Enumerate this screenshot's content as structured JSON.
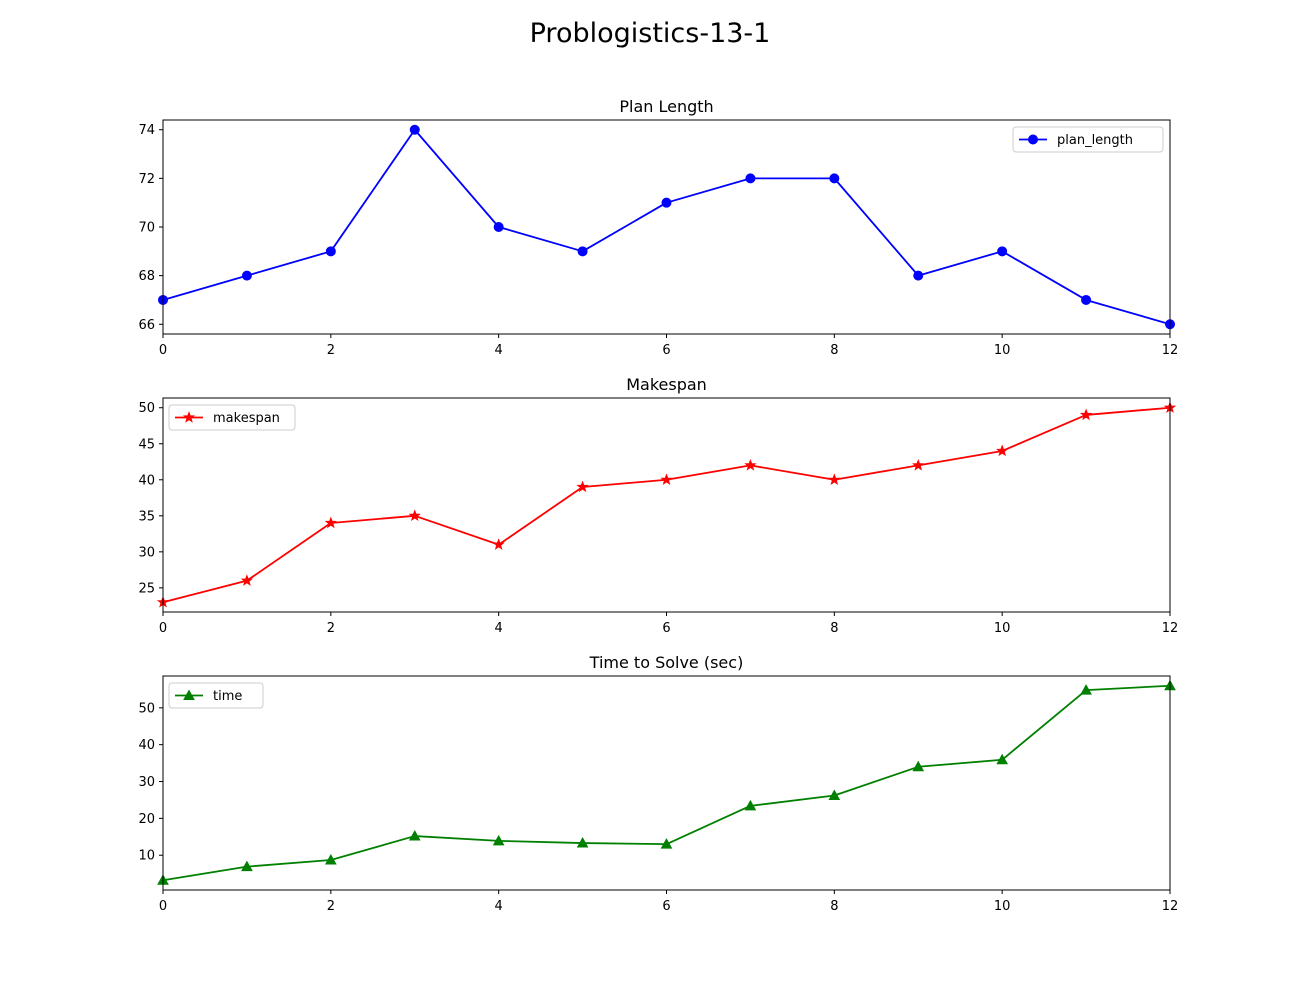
{
  "figure": {
    "title": "Problogistics-13-1"
  },
  "chart_data": [
    {
      "type": "line",
      "title": "Plan Length",
      "x": [
        0,
        1,
        2,
        3,
        4,
        5,
        6,
        7,
        8,
        9,
        10,
        11,
        12
      ],
      "series": [
        {
          "name": "plan_length",
          "values": [
            67,
            68,
            69,
            74,
            70,
            69,
            71,
            72,
            72,
            68,
            69,
            67,
            66
          ],
          "color": "#0000ff",
          "marker": "circle"
        }
      ],
      "xlim": [
        0,
        12
      ],
      "ylim": [
        65.6,
        74.4
      ],
      "xticks": [
        0,
        2,
        4,
        6,
        8,
        10,
        12
      ],
      "yticks": [
        66,
        68,
        70,
        72,
        74
      ],
      "legend": "upper-right",
      "grid": false
    },
    {
      "type": "line",
      "title": "Makespan",
      "x": [
        0,
        1,
        2,
        3,
        4,
        5,
        6,
        7,
        8,
        9,
        10,
        11,
        12
      ],
      "series": [
        {
          "name": "makespan",
          "values": [
            23,
            26,
            34,
            35,
            31,
            39,
            40,
            42,
            40,
            42,
            44,
            49,
            50
          ],
          "color": "#ff0000",
          "marker": "star"
        }
      ],
      "xlim": [
        0,
        12
      ],
      "ylim": [
        21.65,
        51.35
      ],
      "xticks": [
        0,
        2,
        4,
        6,
        8,
        10,
        12
      ],
      "yticks": [
        25,
        30,
        35,
        40,
        45,
        50
      ],
      "legend": "upper-left",
      "grid": false
    },
    {
      "type": "line",
      "title": "Time to Solve (sec)",
      "x": [
        0,
        1,
        2,
        3,
        4,
        5,
        6,
        7,
        8,
        9,
        10,
        11,
        12
      ],
      "series": [
        {
          "name": "time",
          "values": [
            3.2,
            6.9,
            8.7,
            15.2,
            13.9,
            13.3,
            13.0,
            23.4,
            26.2,
            34.0,
            35.9,
            54.8,
            56.0
          ],
          "color": "#008000",
          "marker": "triangle"
        }
      ],
      "xlim": [
        0,
        12
      ],
      "ylim": [
        0.56,
        58.64
      ],
      "xticks": [
        0,
        2,
        4,
        6,
        8,
        10,
        12
      ],
      "yticks": [
        10,
        20,
        30,
        40,
        50
      ],
      "legend": "upper-left",
      "grid": false
    }
  ]
}
